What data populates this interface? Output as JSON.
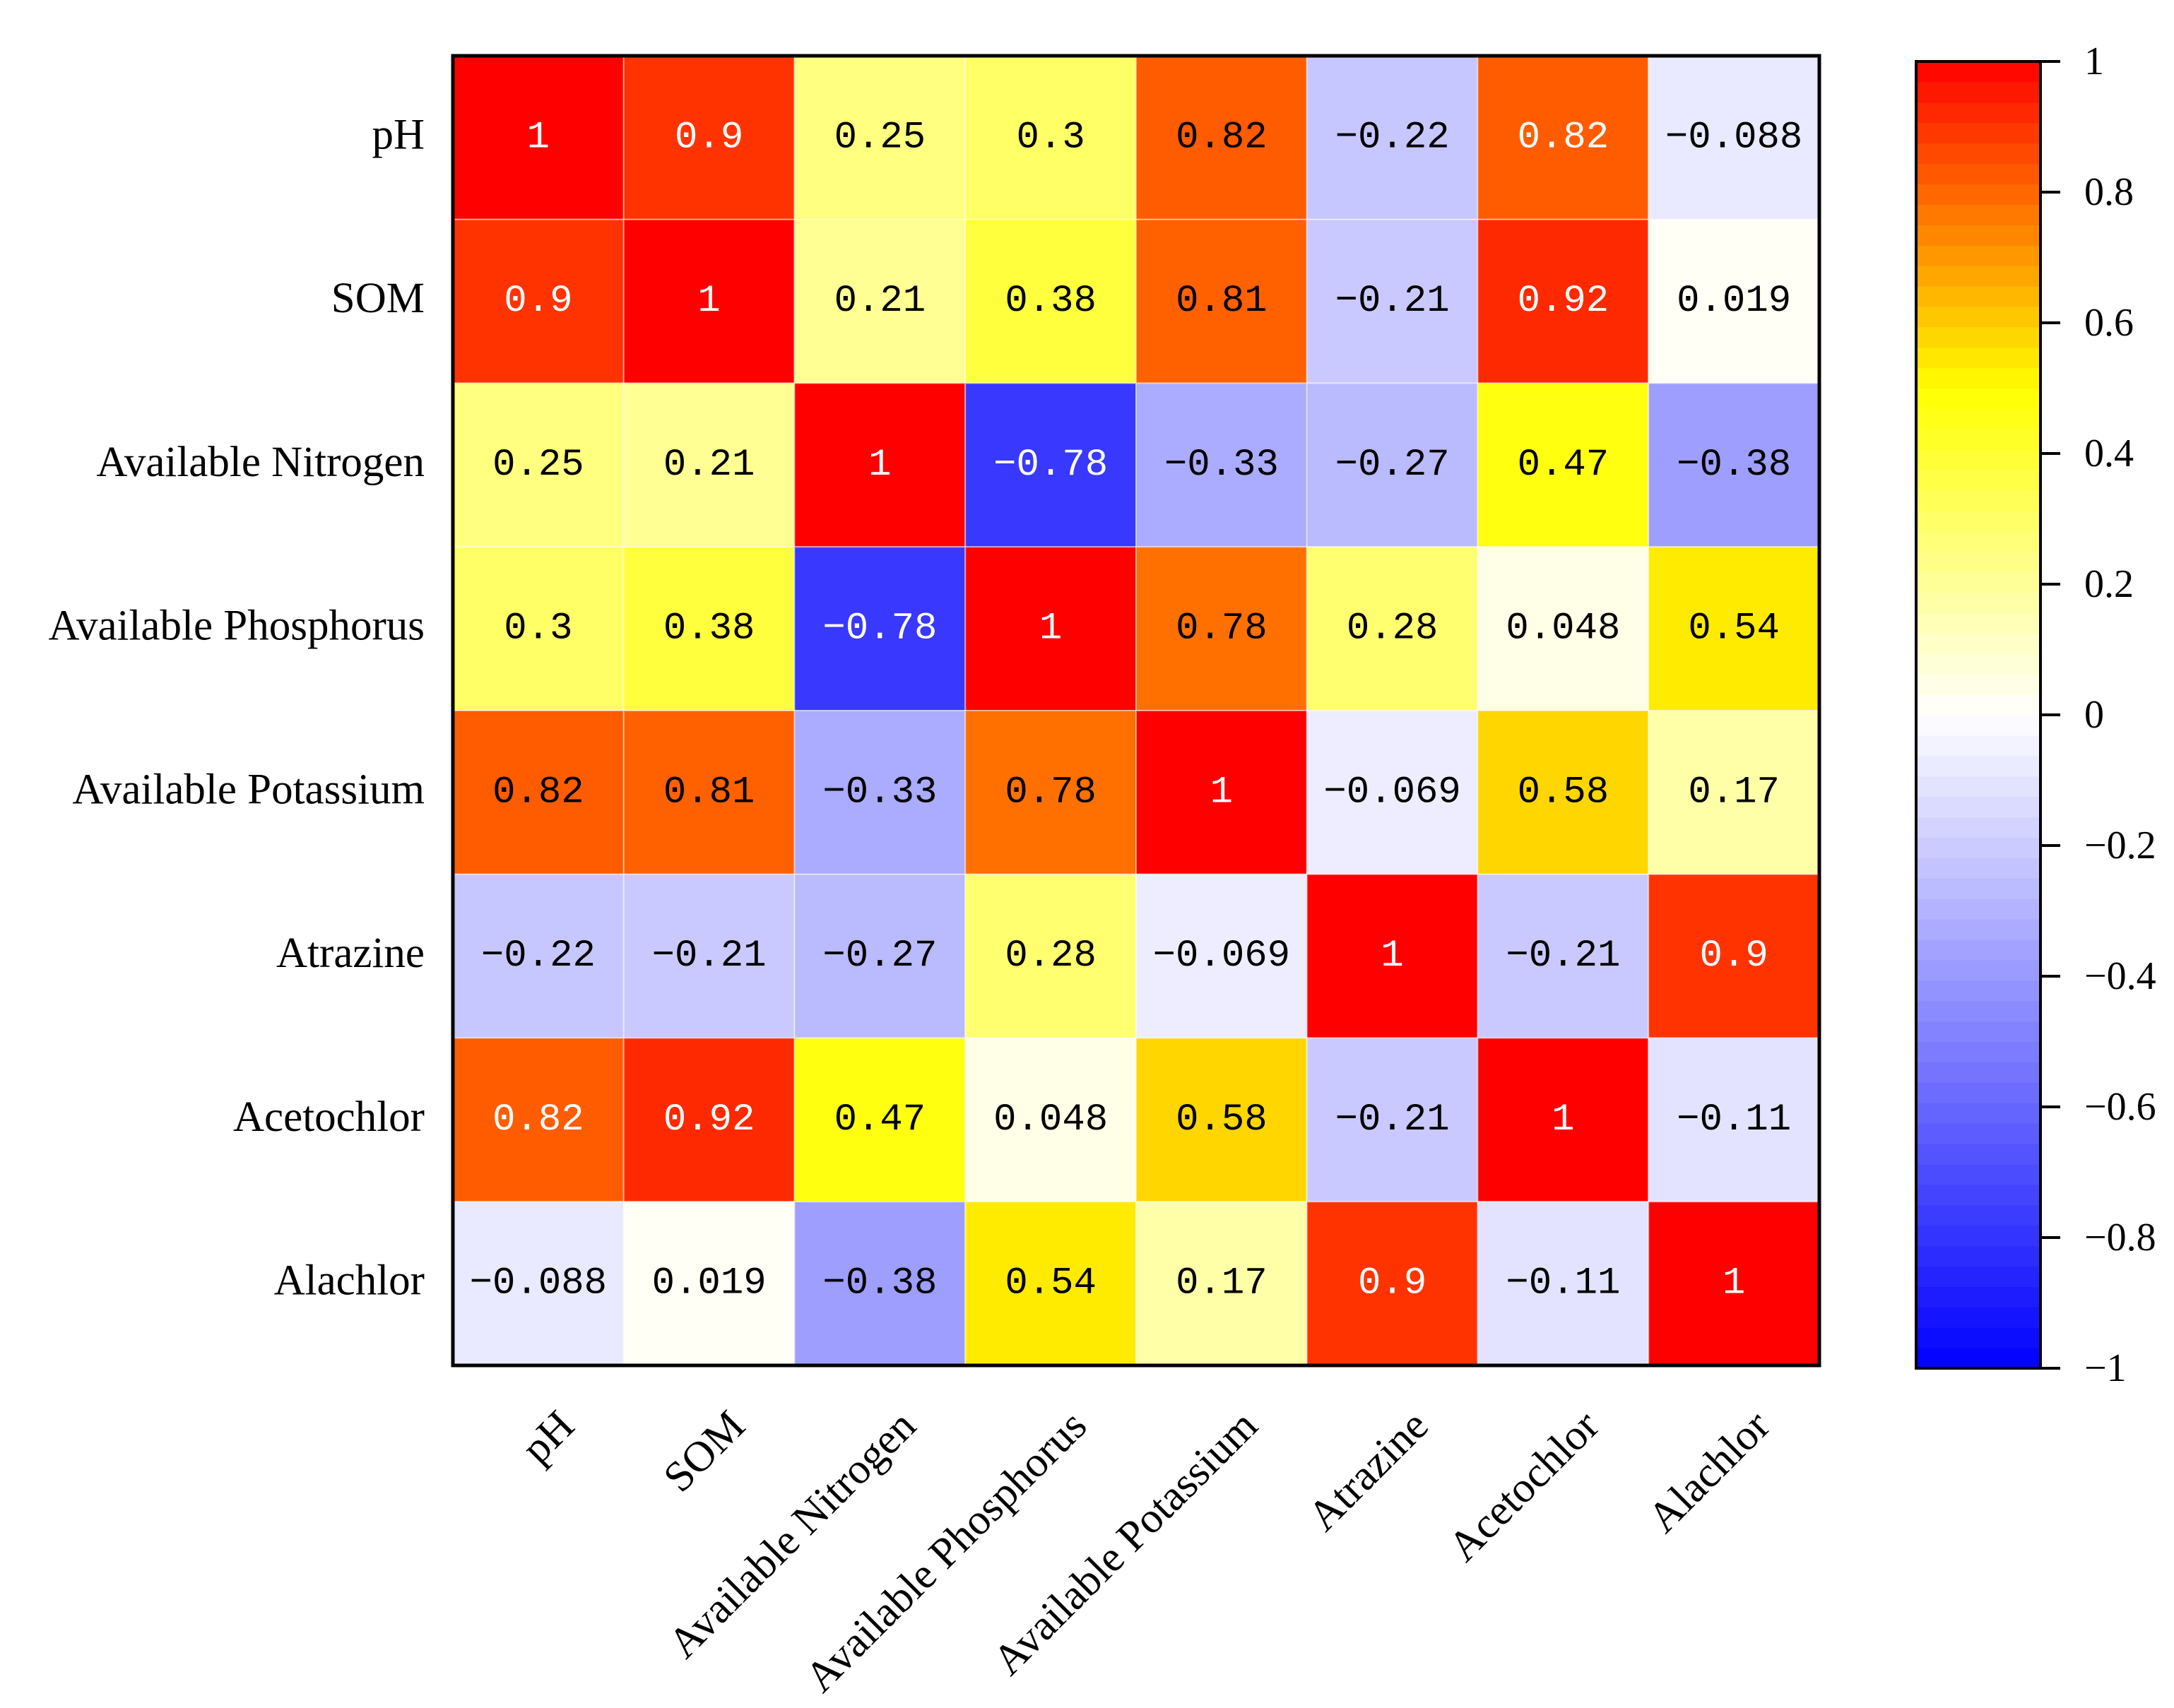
{
  "chart_data": {
    "type": "heatmap",
    "row_labels": [
      "pH",
      "SOM",
      "Available Nitrogen",
      "Available Phosphorus",
      "Available Potassium",
      "Atrazine",
      "Acetochlor",
      "Alachlor"
    ],
    "col_labels": [
      "pH",
      "SOM",
      "Available Nitrogen",
      "Available Phosphorus",
      "Available Potassium",
      "Atrazine",
      "Acetochlor",
      "Alachlor"
    ],
    "values": [
      [
        1,
        0.9,
        0.25,
        0.3,
        0.82,
        -0.22,
        0.82,
        -0.088
      ],
      [
        0.9,
        1,
        0.21,
        0.38,
        0.81,
        -0.21,
        0.92,
        0.019
      ],
      [
        0.25,
        0.21,
        1,
        -0.78,
        -0.33,
        -0.27,
        0.47,
        -0.38
      ],
      [
        0.3,
        0.38,
        -0.78,
        1,
        0.78,
        0.28,
        0.048,
        0.54
      ],
      [
        0.82,
        0.81,
        -0.33,
        0.78,
        1,
        -0.069,
        0.58,
        0.17
      ],
      [
        -0.22,
        -0.21,
        -0.27,
        0.28,
        -0.069,
        1,
        -0.21,
        0.9
      ],
      [
        0.82,
        0.92,
        0.47,
        0.048,
        0.58,
        -0.21,
        1,
        -0.11
      ],
      [
        -0.088,
        0.019,
        -0.38,
        0.54,
        0.17,
        0.9,
        -0.11,
        1
      ]
    ],
    "light_labels": [
      [
        1,
        1,
        0,
        0,
        0,
        0,
        1,
        0
      ],
      [
        1,
        1,
        0,
        0,
        0,
        0,
        1,
        0
      ],
      [
        0,
        0,
        1,
        1,
        0,
        0,
        0,
        0
      ],
      [
        0,
        0,
        1,
        1,
        0,
        0,
        0,
        0
      ],
      [
        0,
        0,
        0,
        0,
        1,
        0,
        0,
        0
      ],
      [
        0,
        0,
        0,
        0,
        0,
        1,
        0,
        1
      ],
      [
        1,
        1,
        0,
        0,
        0,
        0,
        1,
        0
      ],
      [
        0,
        0,
        0,
        0,
        0,
        1,
        0,
        1
      ]
    ],
    "label_colors": {
      "dark": "#000000",
      "light": "#FFFFFF"
    },
    "colormap": [
      {
        "value": -1,
        "color": "#0000FF"
      },
      {
        "value": 0,
        "color": "#FFFFFF"
      },
      {
        "value": 0.5,
        "color": "#FFFF00"
      },
      {
        "value": 1,
        "color": "#FF0000"
      }
    ],
    "colorbar": {
      "range": [
        -1,
        1
      ],
      "levels": 64,
      "ticks": [
        1,
        0.8,
        0.6,
        0.4,
        0.2,
        0,
        -0.2,
        -0.4,
        -0.6,
        -0.8,
        -1
      ],
      "tick_labels": [
        "1",
        "0.8",
        "0.6",
        "0.4",
        "0.2",
        "0",
        "−0.2",
        "−0.4",
        "−0.6",
        "−0.8",
        "−1"
      ]
    }
  }
}
